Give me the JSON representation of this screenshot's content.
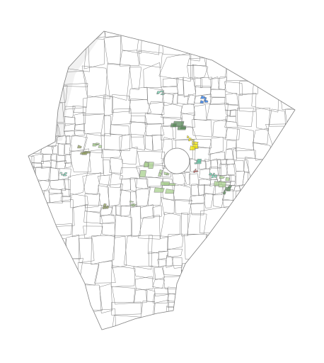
{
  "map": {
    "type": "parcel-map",
    "background_color": "#ffffff",
    "boundary_stroke_color": "#808080",
    "parcel_fill_color": "#ffffff",
    "unparceled_fill_color": "#f2f2f2",
    "legend": "none",
    "highlight_colors": {
      "green": "#a8d08d",
      "dark_green": "#5a8a5a",
      "teal": "#66cdaa",
      "yellow": "#f2e600",
      "blue": "#1e6fe0",
      "red": "#d9534f",
      "olive": "#8f9c5c"
    }
  }
}
